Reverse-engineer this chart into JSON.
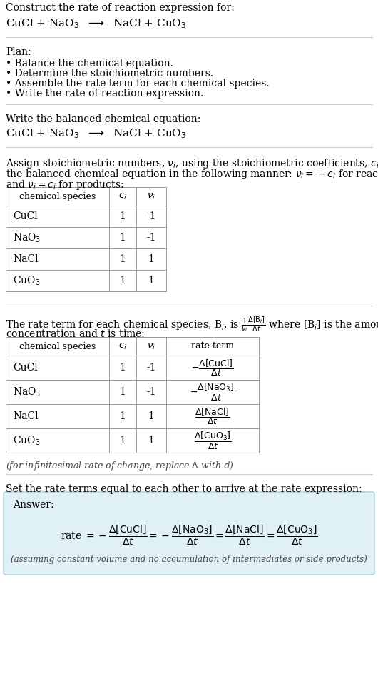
{
  "bg_color": "#ffffff",
  "text_color": "#000000",
  "answer_box_color": "#dff0f7",
  "answer_box_edge": "#aaccdd",
  "species_display": [
    "CuCl",
    "NaO$_3$",
    "NaCl",
    "CuO$_3$"
  ],
  "ci_vals": [
    "1",
    "1",
    "1",
    "1"
  ],
  "vi_vals": [
    "-1",
    "-1",
    "1",
    "1"
  ]
}
